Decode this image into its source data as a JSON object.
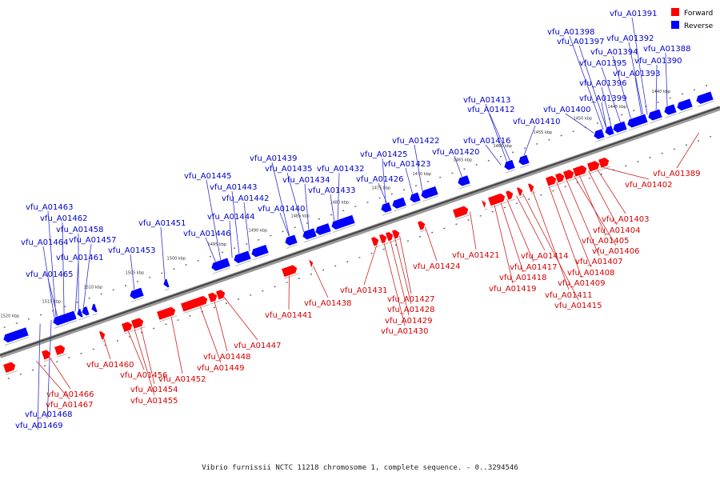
{
  "caption": "Vibrio furnissii NCTC 11218 chromosome 1, complete sequence. - 0..3294546",
  "legend": [
    {
      "label": "Forward",
      "color": "#ff0000"
    },
    {
      "label": "Reverse",
      "color": "#0000ff"
    }
  ],
  "colors": {
    "forward": "#ff0000",
    "reverse": "#0000ff",
    "forward_label": "#d40000",
    "reverse_label": "#0000cc"
  },
  "ticks": [
    "1445 kbp",
    "1450 kbp",
    "1455 kbp",
    "1460 kbp",
    "1465 kbp",
    "1470 kbp",
    "1475 kbp",
    "1480 kbp",
    "1485 kbp",
    "1490 kbp",
    "1495 kbp",
    "1500 kbp",
    "1505 kbp",
    "1510 kbp",
    "1515 kbp",
    "1520 kbp",
    "1440 kbp"
  ],
  "forward_genes": [
    "vfu_A01389",
    "vfu_A01402",
    "vfu_A01403",
    "vfu_A01404",
    "vfu_A01405",
    "vfu_A01406",
    "vfu_A01407",
    "vfu_A01408",
    "vfu_A01409",
    "vfu_A01411",
    "vfu_A01415",
    "vfu_A01414",
    "vfu_A01417",
    "vfu_A01418",
    "vfu_A01419",
    "vfu_A01421",
    "vfu_A01424",
    "vfu_A01427",
    "vfu_A01428",
    "vfu_A01429",
    "vfu_A01430",
    "vfu_A01431",
    "vfu_A01438",
    "vfu_A01441",
    "vfu_A01447",
    "vfu_A01448",
    "vfu_A01449",
    "vfu_A01452",
    "vfu_A01454",
    "vfu_A01455",
    "vfu_A01456",
    "vfu_A01460",
    "vfu_A01466",
    "vfu_A01467"
  ],
  "reverse_genes": [
    "vfu_A01391",
    "vfu_A01398",
    "vfu_A01397",
    "vfu_A01392",
    "vfu_A01394",
    "vfu_A01388",
    "vfu_A01395",
    "vfu_A01390",
    "vfu_A01393",
    "vfu_A01396",
    "vfu_A01399",
    "vfu_A01413",
    "vfu_A01412",
    "vfu_A01400",
    "vfu_A01410",
    "vfu_A01416",
    "vfu_A01422",
    "vfu_A01425",
    "vfu_A01420",
    "vfu_A01423",
    "vfu_A01439",
    "vfu_A01435",
    "vfu_A01432",
    "vfu_A01434",
    "vfu_A01426",
    "vfu_A01445",
    "vfu_A01433",
    "vfu_A01443",
    "vfu_A01442",
    "vfu_A01440",
    "vfu_A01444",
    "vfu_A01451",
    "vfu_A01446",
    "vfu_A01463",
    "vfu_A01462",
    "vfu_A01458",
    "vfu_A01464",
    "vfu_A01457",
    "vfu_A01453",
    "vfu_A01461",
    "vfu_A01465",
    "vfu_A01468",
    "vfu_A01469"
  ]
}
